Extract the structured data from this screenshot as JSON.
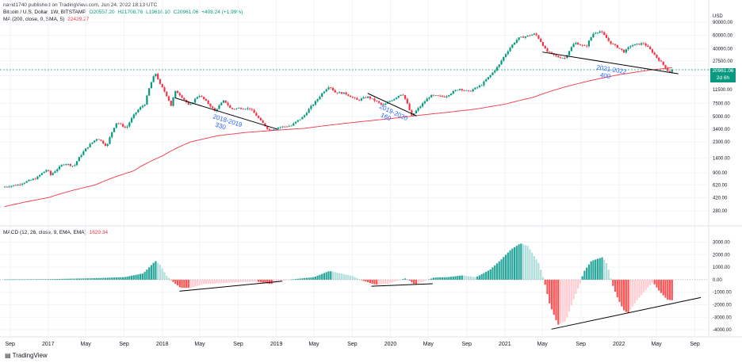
{
  "header": {
    "title_line": "navid1740 published on TradingView.com, Jun 24, 2022 18:13 UTC",
    "symbol": "Bitcoin / U.S. Dollar, 1W, BITSTAMP",
    "ohlc": {
      "o": "O20557.20",
      "h": "H21708.76",
      "l": "L19616.10",
      "c": "C20961.06",
      "chg": "+408.24 (+1.99%)"
    },
    "ma_label": "MA (200, close, 0, SMA, 5)",
    "ma_value": "22429.27",
    "macd_label": "MACD (12, 26, close, 9, EMA, EMA)",
    "macd_value": "1629.34",
    "currency": "USD",
    "price_tag": {
      "value": "20961.06",
      "time": "2d 6h"
    },
    "brand": "TradingView"
  },
  "colors": {
    "up": "#089981",
    "down": "#f23645",
    "ma": "#f23645",
    "hist_up_strong": "#26a69a",
    "hist_up_weak": "#b2dfdb",
    "hist_down_strong": "#ff5252",
    "hist_down_weak": "#ffcdd2",
    "annotation": "#2962ff",
    "trendline": "#000000"
  },
  "chart_data": [
    {
      "type": "candlestick",
      "y_scale": "log",
      "ylim": [
        200,
        120000
      ],
      "y_ticks": [
        "90000.00",
        "60000.00",
        "40000.00",
        "27500.00",
        "17500.00",
        "11500.00",
        "7500.00",
        "5000.00",
        "3400.00",
        "2300.00",
        "1400.00",
        "900.00",
        "620.00",
        "420.00",
        "280.00"
      ],
      "x_ticks": [
        "Sep",
        "2017",
        "May",
        "Sep",
        "2018",
        "May",
        "Sep",
        "2019",
        "May",
        "Sep",
        "2020",
        "May",
        "Sep",
        "2021",
        "May",
        "Sep",
        "2022",
        "May",
        "Sep"
      ],
      "x_range": [
        "2016-08-15",
        "2022-09-30"
      ],
      "price_series": [
        [
          "2016-08-15",
          580
        ],
        [
          "2016-10-01",
          620
        ],
        [
          "2016-12-01",
          760
        ],
        [
          "2017-01-05",
          1000
        ],
        [
          "2017-01-15",
          830
        ],
        [
          "2017-03-01",
          1200
        ],
        [
          "2017-04-01",
          1100
        ],
        [
          "2017-05-20",
          2100
        ],
        [
          "2017-06-15",
          2600
        ],
        [
          "2017-07-15",
          2000
        ],
        [
          "2017-08-15",
          4200
        ],
        [
          "2017-09-15",
          3500
        ],
        [
          "2017-10-20",
          6000
        ],
        [
          "2017-11-15",
          7500
        ],
        [
          "2017-12-17",
          19000
        ],
        [
          "2017-12-31",
          13500
        ],
        [
          "2018-02-05",
          7000
        ],
        [
          "2018-02-20",
          11000
        ],
        [
          "2018-04-05",
          6800
        ],
        [
          "2018-05-05",
          9700
        ],
        [
          "2018-06-25",
          5900
        ],
        [
          "2018-07-25",
          8200
        ],
        [
          "2018-08-15",
          6300
        ],
        [
          "2018-09-15",
          6500
        ],
        [
          "2018-10-15",
          6400
        ],
        [
          "2018-11-20",
          4300
        ],
        [
          "2018-12-15",
          3300
        ],
        [
          "2019-01-15",
          3600
        ],
        [
          "2019-02-25",
          3800
        ],
        [
          "2019-04-05",
          5000
        ],
        [
          "2019-05-15",
          8000
        ],
        [
          "2019-06-26",
          12800
        ],
        [
          "2019-07-15",
          10500
        ],
        [
          "2019-08-15",
          10200
        ],
        [
          "2019-09-25",
          8200
        ],
        [
          "2019-10-26",
          9200
        ],
        [
          "2019-12-15",
          7000
        ],
        [
          "2020-01-20",
          8700
        ],
        [
          "2020-02-15",
          10200
        ],
        [
          "2020-03-15",
          5000
        ],
        [
          "2020-04-15",
          7000
        ],
        [
          "2020-05-15",
          9500
        ],
        [
          "2020-07-01",
          9200
        ],
        [
          "2020-08-15",
          11800
        ],
        [
          "2020-09-15",
          10700
        ],
        [
          "2020-10-25",
          13100
        ],
        [
          "2020-11-25",
          18000
        ],
        [
          "2020-12-20",
          24000
        ],
        [
          "2021-01-15",
          36000
        ],
        [
          "2021-02-20",
          55000
        ],
        [
          "2021-03-15",
          58000
        ],
        [
          "2021-04-15",
          63000
        ],
        [
          "2021-05-20",
          37000
        ],
        [
          "2021-06-25",
          31000
        ],
        [
          "2021-07-20",
          30000
        ],
        [
          "2021-08-20",
          48000
        ],
        [
          "2021-09-25",
          42000
        ],
        [
          "2021-10-20",
          65000
        ],
        [
          "2021-11-10",
          68000
        ],
        [
          "2021-12-10",
          48000
        ],
        [
          "2022-01-25",
          36000
        ],
        [
          "2022-02-15",
          44000
        ],
        [
          "2022-03-28",
          47000
        ],
        [
          "2022-05-10",
          30000
        ],
        [
          "2022-06-18",
          19000
        ],
        [
          "2022-06-24",
          20961
        ]
      ],
      "ma200_series": [
        [
          "2016-08-15",
          320
        ],
        [
          "2017-01-01",
          420
        ],
        [
          "2017-06-01",
          620
        ],
        [
          "2017-10-01",
          950
        ],
        [
          "2018-01-01",
          1500
        ],
        [
          "2018-04-01",
          2300
        ],
        [
          "2018-07-01",
          2800
        ],
        [
          "2018-10-01",
          3100
        ],
        [
          "2019-01-01",
          3300
        ],
        [
          "2019-04-01",
          3500
        ],
        [
          "2019-07-01",
          3900
        ],
        [
          "2019-10-01",
          4300
        ],
        [
          "2020-01-01",
          4700
        ],
        [
          "2020-04-01",
          5200
        ],
        [
          "2020-07-01",
          5700
        ],
        [
          "2020-10-01",
          6300
        ],
        [
          "2021-01-01",
          7300
        ],
        [
          "2021-04-01",
          9000
        ],
        [
          "2021-07-01",
          12000
        ],
        [
          "2021-10-01",
          15000
        ],
        [
          "2022-01-01",
          18000
        ],
        [
          "2022-04-01",
          20500
        ],
        [
          "2022-06-24",
          22429
        ]
      ],
      "trendlines": [
        {
          "from": [
            "2018-02-10",
            8900
          ],
          "to": [
            "2019-01-05",
            3400
          ],
          "label": "2018-2019",
          "sublabel": "330"
        },
        {
          "from": [
            "2019-10-20",
            10200
          ],
          "to": [
            "2020-03-25",
            5100
          ],
          "label": "2019-2020",
          "sublabel": "160"
        },
        {
          "from": [
            "2021-05-01",
            36000
          ],
          "to": [
            "2022-07-10",
            18500
          ],
          "label": "2021-2022",
          "sublabel": "400"
        }
      ],
      "hline": 20961.06
    },
    {
      "type": "histogram",
      "title": "MACD (12, 26, close, 9, EMA, EMA)",
      "ylim": [
        -4500,
        3600
      ],
      "y_ticks": [
        "3000.00",
        "2000.00",
        "1000.00",
        "0.00",
        "-1000.00",
        "-2000.00",
        "-3000.00",
        "-4000.00"
      ],
      "histogram": [
        [
          "2016-08-15",
          15
        ],
        [
          "2017-01-01",
          40
        ],
        [
          "2017-06-01",
          120
        ],
        [
          "2017-09-01",
          200
        ],
        [
          "2017-11-01",
          500
        ],
        [
          "2017-12-10",
          1500
        ],
        [
          "2017-12-25",
          1200
        ],
        [
          "2018-01-15",
          300
        ],
        [
          "2018-02-10",
          -300
        ],
        [
          "2018-03-01",
          -650
        ],
        [
          "2018-04-01",
          -650
        ],
        [
          "2018-05-15",
          -350
        ],
        [
          "2018-07-01",
          -300
        ],
        [
          "2018-09-01",
          -200
        ],
        [
          "2018-11-01",
          -150
        ],
        [
          "2018-12-15",
          -350
        ],
        [
          "2019-01-15",
          -100
        ],
        [
          "2019-03-01",
          50
        ],
        [
          "2019-05-01",
          200
        ],
        [
          "2019-06-20",
          700
        ],
        [
          "2019-07-15",
          550
        ],
        [
          "2019-09-01",
          300
        ],
        [
          "2019-10-01",
          -50
        ],
        [
          "2019-11-15",
          -400
        ],
        [
          "2019-12-20",
          -350
        ],
        [
          "2020-01-20",
          -100
        ],
        [
          "2020-02-20",
          120
        ],
        [
          "2020-03-20",
          -400
        ],
        [
          "2020-04-20",
          -100
        ],
        [
          "2020-05-20",
          170
        ],
        [
          "2020-07-01",
          200
        ],
        [
          "2020-08-20",
          350
        ],
        [
          "2020-10-01",
          200
        ],
        [
          "2020-11-15",
          800
        ],
        [
          "2020-12-20",
          1600
        ],
        [
          "2021-01-20",
          2400
        ],
        [
          "2021-02-20",
          2900
        ],
        [
          "2021-03-15",
          2700
        ],
        [
          "2021-04-20",
          1300
        ],
        [
          "2021-05-10",
          -400
        ],
        [
          "2021-05-25",
          -2000
        ],
        [
          "2021-06-20",
          -3600
        ],
        [
          "2021-07-15",
          -3300
        ],
        [
          "2021-08-10",
          -1500
        ],
        [
          "2021-08-30",
          -300
        ],
        [
          "2021-09-10",
          600
        ],
        [
          "2021-10-05",
          1500
        ],
        [
          "2021-11-10",
          1800
        ],
        [
          "2021-11-25",
          1200
        ],
        [
          "2021-12-10",
          -300
        ],
        [
          "2021-12-25",
          -1300
        ],
        [
          "2022-01-15",
          -2400
        ],
        [
          "2022-01-30",
          -2700
        ],
        [
          "2022-03-01",
          -1600
        ],
        [
          "2022-04-05",
          -600
        ],
        [
          "2022-04-20",
          -200
        ],
        [
          "2022-05-10",
          -900
        ],
        [
          "2022-06-05",
          -1600
        ],
        [
          "2022-06-24",
          -1650
        ]
      ],
      "trendlines": [
        {
          "from": [
            "2018-02-25",
            -920
          ],
          "to": [
            "2019-01-20",
            -120
          ]
        },
        {
          "from": [
            "2019-11-01",
            -520
          ],
          "to": [
            "2020-05-15",
            -320
          ]
        },
        {
          "from": [
            "2021-05-30",
            -3950
          ],
          "to": [
            "2022-09-20",
            -1420
          ]
        }
      ]
    }
  ]
}
